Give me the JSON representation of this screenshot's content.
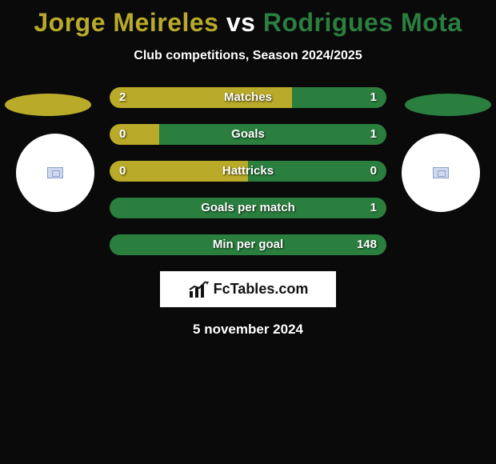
{
  "header": {
    "player1": "Jorge Meireles",
    "vs": "vs",
    "player2": "Rodrigues Mota",
    "color1": "#b9aa29",
    "color2": "#2a7f3f",
    "subtitle": "Club competitions, Season 2024/2025"
  },
  "ellipse": {
    "width": 108,
    "height": 28,
    "left_color": "#b9aa29",
    "right_color": "#2a7f3f"
  },
  "circle": {
    "diameter": 98,
    "bg": "#ffffff"
  },
  "bars": {
    "track_color": "#3a4a2a",
    "left_fill": "#b9aa29",
    "right_fill": "#2a7f3f",
    "rows": [
      {
        "label": "Matches",
        "left": "2",
        "right": "1",
        "left_pct": 66,
        "right_pct": 34
      },
      {
        "label": "Goals",
        "left": "0",
        "right": "1",
        "left_pct": 18,
        "right_pct": 82
      },
      {
        "label": "Hattricks",
        "left": "0",
        "right": "0",
        "left_pct": 50,
        "right_pct": 50
      },
      {
        "label": "Goals per match",
        "left": "",
        "right": "1",
        "left_pct": 0,
        "right_pct": 100
      },
      {
        "label": "Min per goal",
        "left": "",
        "right": "148",
        "left_pct": 0,
        "right_pct": 100
      }
    ]
  },
  "brand": {
    "text": "FcTables.com"
  },
  "date": "5 november 2024"
}
